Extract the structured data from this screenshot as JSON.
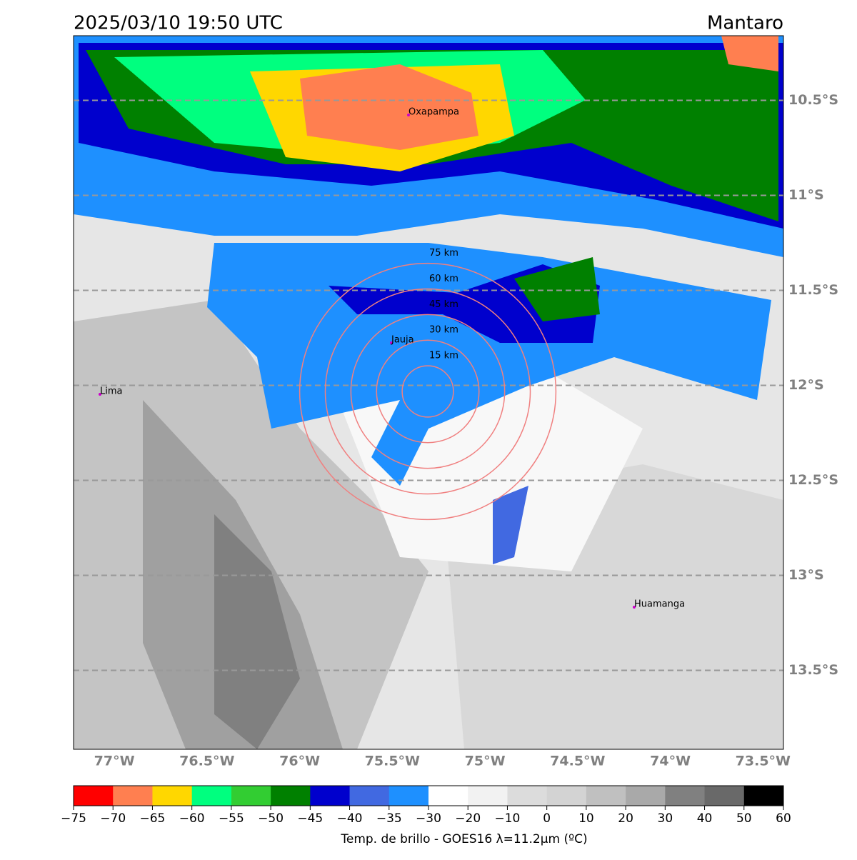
{
  "header": {
    "title": "2025/03/10 19:50 UTC",
    "region": "Mantaro"
  },
  "map": {
    "lat_labels": [
      {
        "value": -10.5,
        "label": "10.5°S"
      },
      {
        "value": -11,
        "label": "11°S"
      },
      {
        "value": -11.5,
        "label": "11.5°S"
      },
      {
        "value": -12,
        "label": "12°S"
      },
      {
        "value": -12.5,
        "label": "12.5°S"
      },
      {
        "value": -13,
        "label": "13°S"
      },
      {
        "value": -13.5,
        "label": "13.5°S"
      }
    ],
    "lon_labels": [
      {
        "value": -77,
        "label": "77°W"
      },
      {
        "value": -76.5,
        "label": "76.5°W"
      },
      {
        "value": -76,
        "label": "76°W"
      },
      {
        "value": -75.5,
        "label": "75.5°W"
      },
      {
        "value": -75,
        "label": "75°W"
      },
      {
        "value": -74.5,
        "label": "74.5°W"
      },
      {
        "value": -74,
        "label": "74°W"
      },
      {
        "value": -73.5,
        "label": "73.5°W"
      }
    ],
    "rings": [
      {
        "value": 15,
        "label": "15 km"
      },
      {
        "value": 30,
        "label": "30 km"
      },
      {
        "value": 45,
        "label": "45 km"
      },
      {
        "value": 60,
        "label": "60 km"
      },
      {
        "value": 75,
        "label": "75 km"
      }
    ],
    "cities": [
      "Oxapampa",
      "Jauja",
      "Lima",
      "Huamanga"
    ]
  },
  "colorbar": {
    "label": "Temp. de brillo - GOES16 λ=11.2μm (ºC)",
    "ticks": [
      {
        "value": -75,
        "label": "−75"
      },
      {
        "value": -70,
        "label": "−70"
      },
      {
        "value": -65,
        "label": "−65"
      },
      {
        "value": -60,
        "label": "−60"
      },
      {
        "value": -55,
        "label": "−55"
      },
      {
        "value": -50,
        "label": "−50"
      },
      {
        "value": -45,
        "label": "−45"
      },
      {
        "value": -40,
        "label": "−40"
      },
      {
        "value": -35,
        "label": "−35"
      },
      {
        "value": -30,
        "label": "−30"
      },
      {
        "value": -20,
        "label": "−20"
      },
      {
        "value": -10,
        "label": "−10"
      },
      0,
      10,
      20,
      30,
      40,
      50,
      60
    ],
    "colors": [
      "#ff0000",
      "#ff7f50",
      "#ffd700",
      "#00ff7f",
      "#32cd32",
      "#008000",
      "#0000cd",
      "#4169e1",
      "#1e90ff",
      "#ffffff",
      "#f2f2f2",
      "#dcdcdc",
      "#d3d3d3",
      "#c0c0c0",
      "#a9a9a9",
      "#808080",
      "#696969",
      "#000000"
    ]
  }
}
